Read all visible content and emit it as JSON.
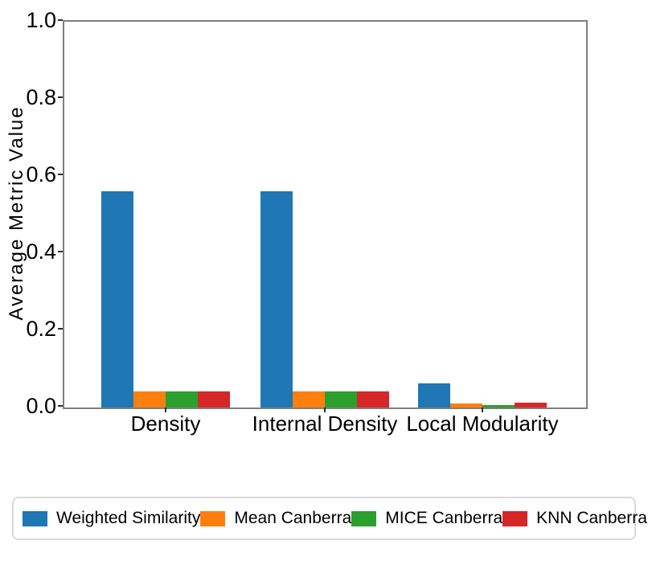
{
  "chart_data": {
    "type": "bar",
    "title": "",
    "xlabel": "",
    "ylabel": "Average Metric Value",
    "categories": [
      "Density",
      "Internal Density",
      "Local Modularity"
    ],
    "series": [
      {
        "name": "Weighted Similarity",
        "color": "#1f77b4",
        "values": [
          0.56,
          0.56,
          0.062
        ]
      },
      {
        "name": "Mean Canberra",
        "color": "#ff7f0e",
        "values": [
          0.042,
          0.042,
          0.01
        ]
      },
      {
        "name": "MICE Canberra",
        "color": "#2ca02c",
        "values": [
          0.042,
          0.042,
          0.006
        ]
      },
      {
        "name": "KNN Canberra",
        "color": "#d62728",
        "values": [
          0.042,
          0.042,
          0.012
        ]
      }
    ],
    "ylim": [
      0.0,
      1.0
    ],
    "y_ticks": [
      "0.0",
      "0.2",
      "0.4",
      "0.6",
      "0.8",
      "1.0"
    ],
    "grid": false,
    "legend_position": "bottom",
    "spine_color": "#7f7f7f"
  }
}
